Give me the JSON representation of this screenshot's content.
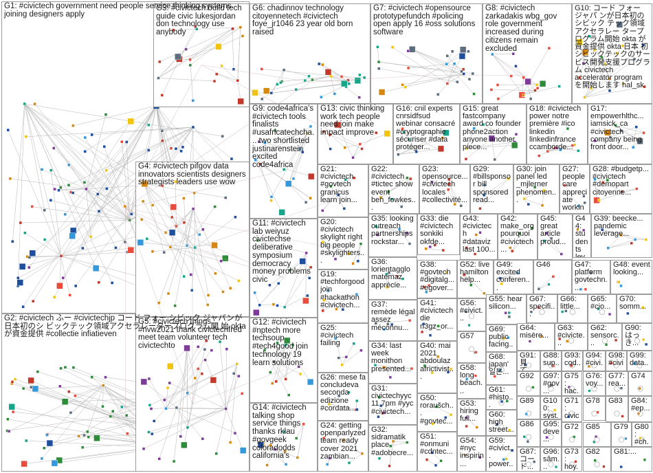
{
  "groups": [
    {
      "id": "G1",
      "text": "G1: #civictech government need people service thinking systems joining designers apply"
    },
    {
      "id": "G2",
      "text": "G2: #civictech ふー #civictechjp コード フォー シビック ジャパンが日本初のシ ビックテック領域アクセラレータープログラム開 始 oktaが資金提供 #collectie infiatieven"
    },
    {
      "id": "G3",
      "text": "G3: #civictech build tech guide civic lukesjordan don technology use anybody"
    },
    {
      "id": "G4",
      "text": "G4: #civictech pifgov data innovators scientists designers strategists leaders use wow"
    },
    {
      "id": "G5",
      "text": "G5: #civictech things #nvw2021 thank civictechfred meet team volunteer tech civictechto"
    },
    {
      "id": "G6",
      "text": "G6: chadinnov technology citoyennetech #civictech foye_jr1046 23 year old born raised"
    },
    {
      "id": "G7",
      "text": "G7: #civictech #opensource prototypefundch #policing open apply 16 #oss solutions software"
    },
    {
      "id": "G8",
      "text": "G8: #civictech zarkadakis wbg_gov role government increased during citizens remain excluded"
    },
    {
      "id": "G9",
      "text": "G9: code4africa's #civictech tools finalists #usafricatechcha... two shortlisted justinarenstein excited code4africa"
    },
    {
      "id": "G10",
      "text": "G10: コード フォー ジャパ ンが日本初のシビック テック領域アクセラレー タープログラム開始 okta が資金提供 okta 日本 初 シビックテックのサー ビス開発支援プログラム civictech accelerator program を開始します hal_sk"
    },
    {
      "id": "G11",
      "text": "G11: #civictech lab weiyuz civictechse deliberative symposium democracy money problems civic"
    },
    {
      "id": "G12",
      "text": "G12: #civictech #nptech more techsoup #tech4good join technology 19 learn solutions"
    },
    {
      "id": "G13",
      "text": "G13: civic thinking work tech people need join make impact improve"
    },
    {
      "id": "G14",
      "text": "G14: #civictech talking shop service things thanks rklau #govgeek coloradodds california's"
    },
    {
      "id": "G15",
      "text": "G15: great fastcompany award co founder phone2action anyone another piece..."
    },
    {
      "id": "G16",
      "text": "G16: cnil experts cnrsidfsud webinar consacré #cryptographie sécuriser #data protéger..."
    },
    {
      "id": "G17",
      "text": "G17: empowerhlthc... iamsick_ca #civictech company being front door..."
    },
    {
      "id": "G18",
      "text": "G18: #civictech power notre première #ico linkedin linkedinfrance ccamborde..."
    },
    {
      "id": "G19",
      "text": "G19: #techforgood join #hackathon #civictech..."
    },
    {
      "id": "G20",
      "text": "G20: #civictech skylight right big people #skylighters..."
    },
    {
      "id": "G21",
      "text": "G21: #civictech #govtech granicus learn join..."
    },
    {
      "id": "G22",
      "text": "G22: #civictech #tictec show event ben_fowkes..."
    },
    {
      "id": "G23",
      "text": "G23: opensource... #civictech locales #collectivité..."
    },
    {
      "id": "G24",
      "text": "G24: getting openparlyzed team ready cover 2021 zambian..."
    },
    {
      "id": "G25",
      "text": "G25: #civictech failing"
    },
    {
      "id": "G26",
      "text": "G26: mese fa concludeva seconda edizione #cordata..."
    },
    {
      "id": "G27",
      "text": "G27: people care appreciate working kelly..."
    },
    {
      "id": "G28",
      "text": "G28: #budgetp... #civictech #demopart citoyenne..."
    },
    {
      "id": "G29",
      "text": "G29: #billsponsor bill sponsored read..."
    },
    {
      "id": "G30",
      "text": "G30: join panel led _mjlerner phenomen..."
    },
    {
      "id": "G31",
      "text": "G31: civictechyyc 11 7pm #yyc #civictech..."
    },
    {
      "id": "G32",
      "text": "G32: sidramatik place #adobecre..."
    },
    {
      "id": "G33",
      "text": "G33: die #civictech sonkiki okfde..."
    },
    {
      "id": "G34",
      "text": "G34: last week monithon presented..."
    },
    {
      "id": "G35",
      "text": "G35: looking outreach partnerships rockstar..."
    },
    {
      "id": "G36",
      "text": "G36: lorientagglo matemaz apprécie..."
    },
    {
      "id": "G37",
      "text": "G37: remède légal assez méconnu..."
    },
    {
      "id": "G38",
      "text": "G38: #govtech #digitalg... #egover..."
    },
    {
      "id": "G39",
      "text": "G39: beecke... pandemic leverage..."
    },
    {
      "id": "G40",
      "text": "G40: mai 2021 abdoulaz africtivist..."
    },
    {
      "id": "G41",
      "text": "G41: #civictech die n3gz_or..."
    },
    {
      "id": "G42",
      "text": "G42: make_org pourquoi #civictech..."
    },
    {
      "id": "G43",
      "text": "G43: #civictech #dataviz last 100..."
    },
    {
      "id": "G44",
      "text": "G44: students leverage #civictec..."
    },
    {
      "id": "G45",
      "text": "G45: great article proud..."
    },
    {
      "id": "G46",
      "text": "G46"
    },
    {
      "id": "G47",
      "text": "G47: platform govtechn..."
    },
    {
      "id": "G48",
      "text": "G48: event looking..."
    },
    {
      "id": "G49",
      "text": "G49: excited conferen..."
    },
    {
      "id": "G50",
      "text": "G50: roraušch... #govtec..."
    },
    {
      "id": "G51",
      "text": "G51: #onmuni #cdntec..."
    },
    {
      "id": "G52",
      "text": "G52: live hamilton help..."
    },
    {
      "id": "G53",
      "text": "G53: hiring full..."
    },
    {
      "id": "G54",
      "text": "G54: #nyc inspirin..."
    },
    {
      "id": "G55",
      "text": "G55: hear silicon..."
    },
    {
      "id": "G56",
      "text": "G56: #civict..."
    },
    {
      "id": "G57",
      "text": "G57"
    },
    {
      "id": "G58",
      "text": "G58: long beach..."
    },
    {
      "id": "G59",
      "text": "G59: #civict... power..."
    },
    {
      "id": "G60",
      "text": "G60: high street..."
    },
    {
      "id": "G61",
      "text": "G61: #histo..."
    },
    {
      "id": "G62",
      "text": "G62: sensorc..."
    },
    {
      "id": "G63",
      "text": "G63: #civicte..."
    },
    {
      "id": "G64",
      "text": "G64: misère..."
    },
    {
      "id": "G65",
      "text": "G65: #cio..."
    },
    {
      "id": "G66",
      "text": "G66: little..."
    },
    {
      "id": "G67",
      "text": "G67: specifi..."
    },
    {
      "id": "G68",
      "text": "G68: japan' 일본..."
    },
    {
      "id": "G69",
      "text": "G69: public facing..."
    },
    {
      "id": "G70",
      "text": "G70: somm..."
    },
    {
      "id": "G71",
      "text": "G71: civict..."
    },
    {
      "id": "G72",
      "text": "G72"
    },
    {
      "id": "G73",
      "text": "G73: hoy..."
    },
    {
      "id": "G74",
      "text": "G74"
    },
    {
      "id": "G75",
      "text": "G75: hac..."
    },
    {
      "id": "G76",
      "text": "G76: voy..."
    },
    {
      "id": "G77",
      "text": "G77: rea..."
    },
    {
      "id": "G78",
      "text": "G78"
    },
    {
      "id": "G79",
      "text": "G79"
    },
    {
      "id": "G80",
      "text": "G80: #ch..."
    },
    {
      "id": "G81",
      "text": "G81:..."
    },
    {
      "id": "G82",
      "text": "G82"
    },
    {
      "id": "G83",
      "text": "G83"
    },
    {
      "id": "G84",
      "text": "G84: #ep..."
    },
    {
      "id": "G85",
      "text": "G85"
    },
    {
      "id": "G86",
      "text": "G86"
    },
    {
      "id": "G87",
      "text": "G87: コード..."
    },
    {
      "id": "G88",
      "text": "G88: sup..."
    },
    {
      "id": "G89",
      "text": "G89"
    },
    {
      "id": "G90",
      "text": "G90: はっき..."
    },
    {
      "id": "G91",
      "text": "G91: 見て..."
    },
    {
      "id": "G92",
      "text": "G92"
    },
    {
      "id": "G93",
      "text": "G93: cod..."
    },
    {
      "id": "G94",
      "text": "G94: #civi..."
    },
    {
      "id": "G95",
      "text": "G95: deve..."
    },
    {
      "id": "G96",
      "text": "G96: sâm..."
    },
    {
      "id": "G97",
      "text": "G97: #gov..."
    },
    {
      "id": "G98",
      "text": "G98: #civi..."
    },
    {
      "id": "G99",
      "text": "G99: data..."
    },
    {
      "id": "G100",
      "text": "G100: syst..."
    }
  ],
  "colors": {
    "border": "#9c9c9c",
    "edge": "#b4b4b4",
    "cross_edge": "#c8a8b0",
    "node_palette": [
      "#1f4e9c",
      "#2e8b3a",
      "#c0392b",
      "#d68910",
      "#7d3c98",
      "#17a589",
      "#5d6d7e",
      "#e74c3c",
      "#3498db",
      "#f1c40f"
    ]
  }
}
